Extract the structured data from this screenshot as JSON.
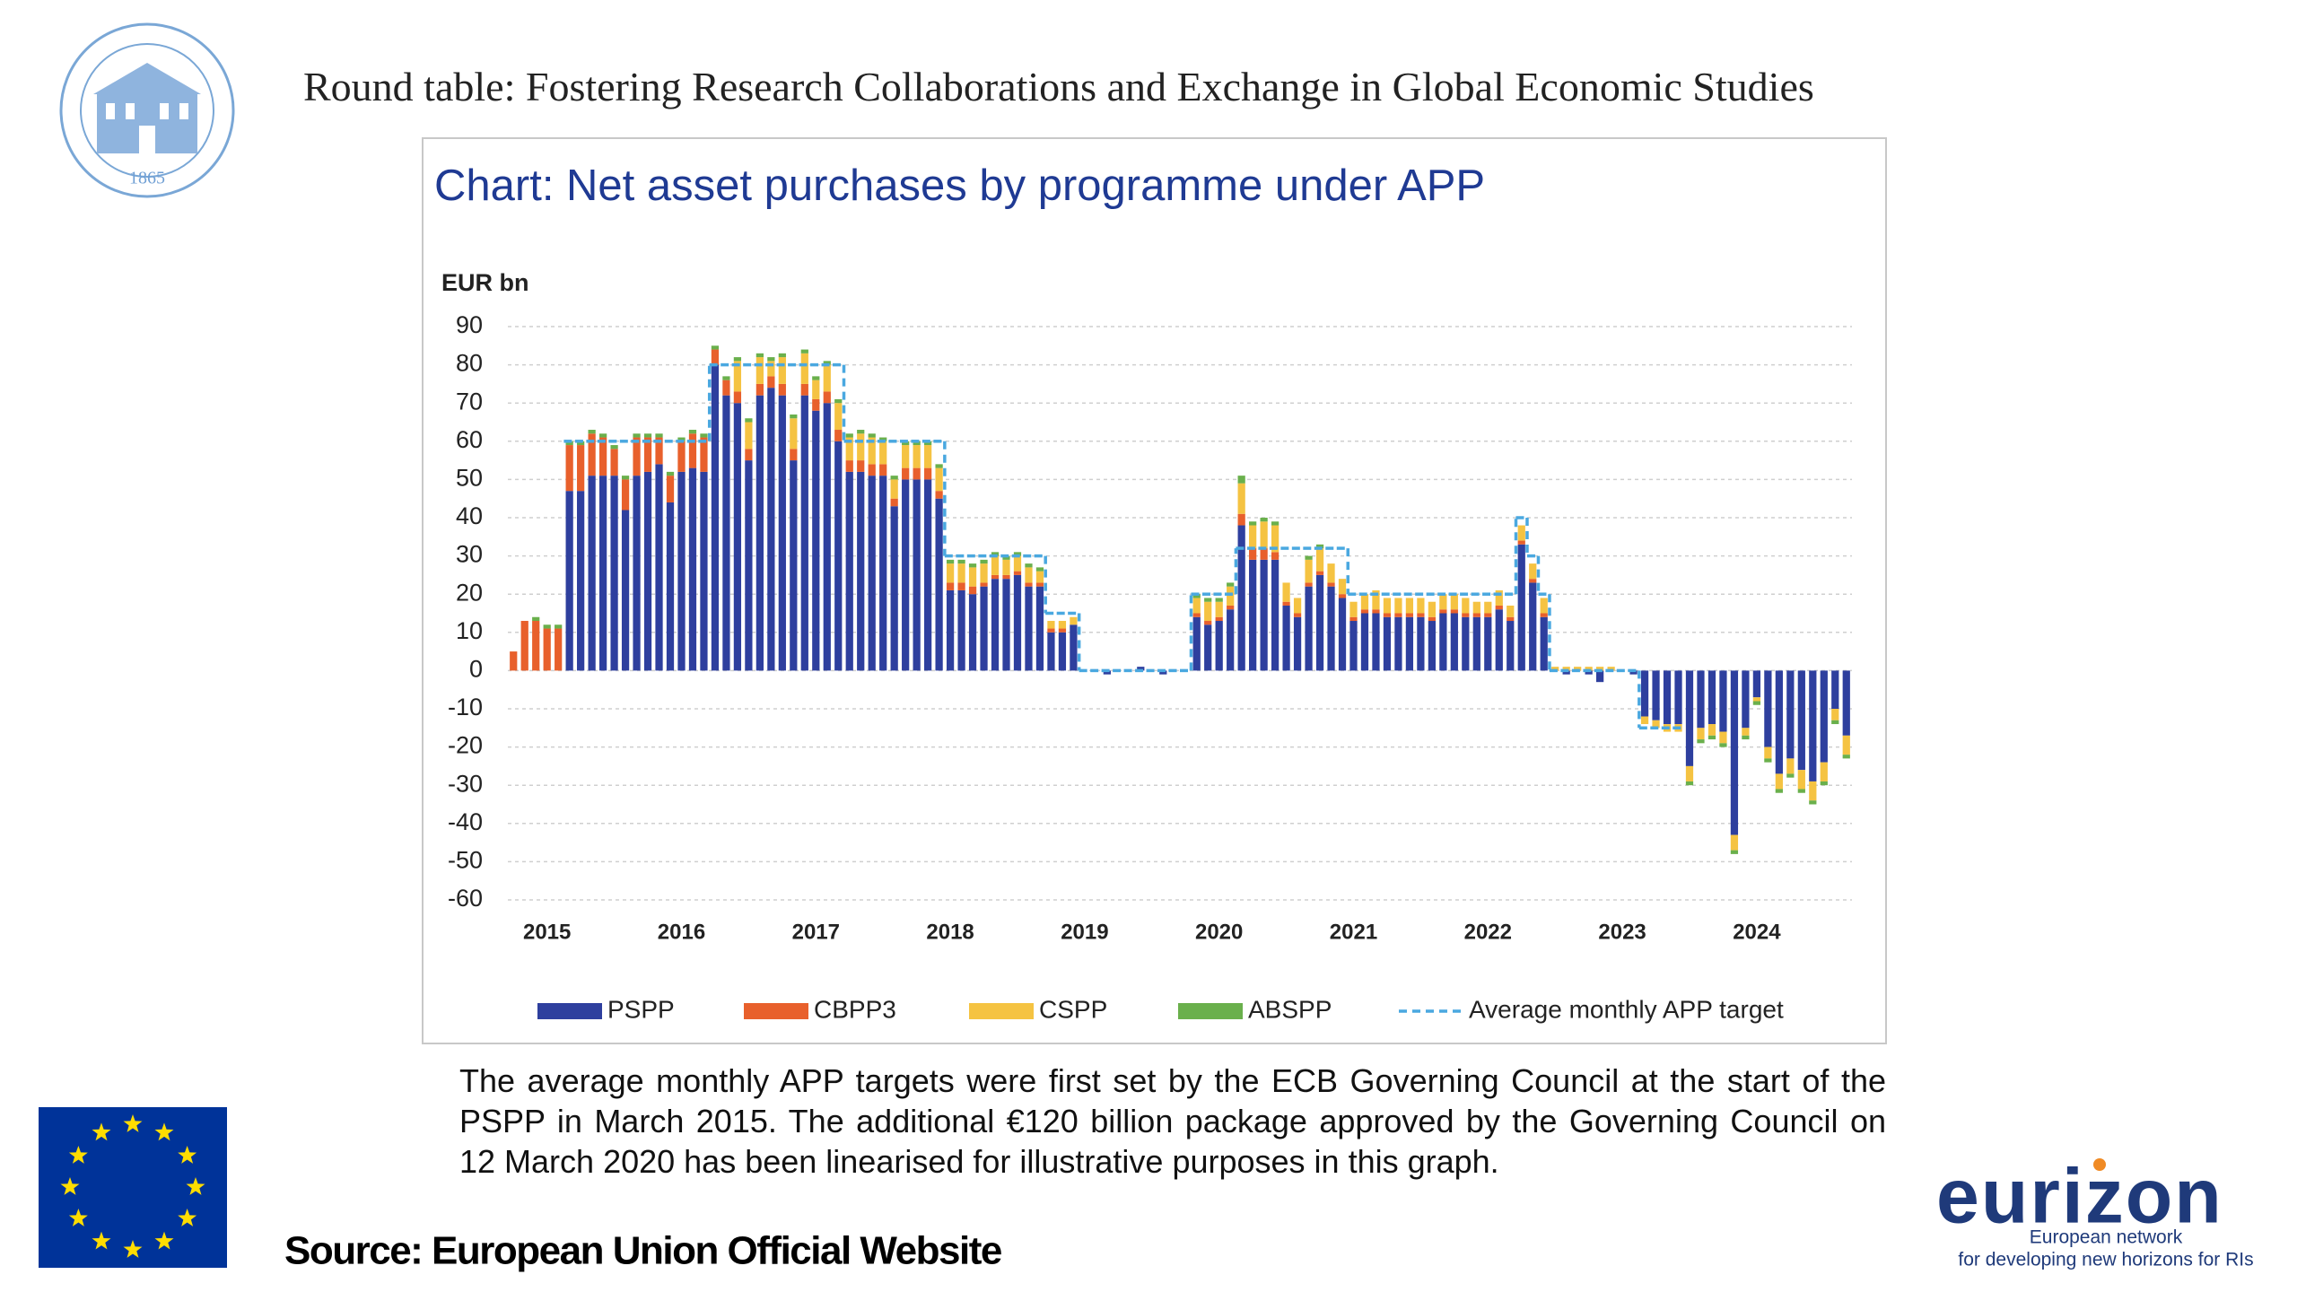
{
  "header": {
    "title": "Round table: Fostering Research Collaborations and Exchange in Global Economic Studies"
  },
  "logo": {
    "year": "1865"
  },
  "chart_data": {
    "type": "bar",
    "stacked": true,
    "title": "Chart: Net asset purchases by programme under APP",
    "y_label": "EUR bn",
    "categories": [
      null,
      null,
      null,
      "2015",
      null,
      null,
      null,
      null,
      null,
      null,
      null,
      null,
      null,
      null,
      null,
      "2016",
      null,
      null,
      null,
      null,
      null,
      null,
      null,
      null,
      null,
      null,
      null,
      "2017",
      null,
      null,
      null,
      null,
      null,
      null,
      null,
      null,
      null,
      null,
      null,
      "2018",
      null,
      null,
      null,
      null,
      null,
      null,
      null,
      null,
      null,
      null,
      null,
      "2019",
      null,
      null,
      null,
      null,
      null,
      null,
      null,
      null,
      null,
      null,
      null,
      "2020",
      null,
      null,
      null,
      null,
      null,
      null,
      null,
      null,
      null,
      null,
      null,
      "2021",
      null,
      null,
      null,
      null,
      null,
      null,
      null,
      null,
      null,
      null,
      null,
      "2022",
      null,
      null,
      null,
      null,
      null,
      null,
      null,
      null,
      null,
      null,
      null,
      "2023",
      null,
      null,
      null,
      null,
      null,
      null,
      null,
      null,
      null,
      null,
      null,
      "2024",
      null,
      null,
      null,
      null,
      null,
      null,
      null,
      null
    ],
    "series": [
      {
        "name": "PSPP",
        "color": "#2e3f9e",
        "values": [
          0,
          0,
          0,
          0,
          0,
          47,
          47,
          51,
          51,
          51,
          42,
          51,
          52,
          54,
          44,
          52,
          53,
          52,
          80,
          72,
          70,
          55,
          72,
          74,
          72,
          55,
          72,
          68,
          70,
          60,
          52,
          52,
          51,
          51,
          43,
          50,
          50,
          50,
          45,
          21,
          21,
          20,
          22,
          24,
          24,
          25,
          22,
          22,
          10,
          10,
          12,
          0,
          0,
          -1,
          0,
          0,
          1,
          0,
          -1,
          0,
          0,
          14,
          12,
          13,
          16,
          38,
          29,
          29,
          29,
          17,
          14,
          22,
          25,
          22,
          19,
          13,
          15,
          15,
          14,
          14,
          14,
          14,
          13,
          15,
          15,
          14,
          14,
          14,
          16,
          13,
          33,
          23,
          14,
          0,
          -1,
          0,
          -1,
          -3,
          0,
          0,
          -1,
          -12,
          -13,
          -14,
          -14,
          -25,
          -15,
          -14,
          -16,
          -43,
          -15,
          -7,
          -20,
          -27,
          -23,
          -26,
          -29,
          -24,
          -10,
          -17
        ]
      },
      {
        "name": "CBPP3",
        "color": "#e8602c",
        "values": [
          5,
          13,
          13,
          11,
          11,
          12,
          12,
          11,
          10,
          7,
          8,
          10,
          9,
          7,
          7,
          8,
          9,
          9,
          4,
          4,
          3,
          3,
          3,
          3,
          3,
          3,
          3,
          3,
          3,
          3,
          3,
          3,
          3,
          3,
          2,
          3,
          3,
          3,
          2,
          2,
          2,
          2,
          1,
          1,
          1,
          1,
          1,
          1,
          1,
          1,
          0,
          0,
          0,
          0,
          0,
          0,
          0,
          0,
          0,
          0,
          0,
          1,
          1,
          1,
          1,
          3,
          3,
          3,
          2,
          1,
          1,
          1,
          1,
          1,
          1,
          1,
          1,
          1,
          1,
          1,
          1,
          1,
          1,
          1,
          1,
          1,
          1,
          1,
          1,
          1,
          1,
          1,
          1,
          0,
          0,
          0,
          0,
          0,
          0,
          0,
          0,
          0,
          0,
          0,
          0,
          0,
          0,
          0,
          0,
          0,
          0,
          0,
          0,
          0,
          0,
          0,
          0,
          0,
          0,
          0
        ]
      },
      {
        "name": "CSPP",
        "color": "#f5c342",
        "values": [
          0,
          0,
          0,
          0,
          0,
          0,
          0,
          0,
          0,
          0,
          0,
          0,
          0,
          0,
          0,
          0,
          0,
          0,
          0,
          0,
          8,
          7,
          7,
          4,
          7,
          8,
          8,
          5,
          7,
          7,
          6,
          7,
          7,
          6,
          5,
          6,
          6,
          6,
          6,
          5,
          5,
          5,
          5,
          5,
          4,
          4,
          4,
          3,
          2,
          2,
          2,
          0,
          0,
          0,
          0,
          0,
          0,
          0,
          0,
          0,
          0,
          4,
          5,
          4,
          5,
          8,
          6,
          7,
          7,
          5,
          4,
          6,
          6,
          5,
          4,
          4,
          4,
          5,
          4,
          4,
          4,
          4,
          4,
          4,
          4,
          4,
          3,
          3,
          4,
          3,
          4,
          4,
          4,
          1,
          1,
          1,
          1,
          1,
          1,
          0,
          0,
          -2,
          -2,
          -2,
          -2,
          -4,
          -3,
          -3,
          -3,
          -4,
          -2,
          -1,
          -3,
          -4,
          -4,
          -5,
          -5,
          -5,
          -3,
          -5
        ]
      },
      {
        "name": "ABSPP",
        "color": "#6ab04c",
        "values": [
          0,
          0,
          1,
          1,
          1,
          1,
          1,
          1,
          1,
          1,
          1,
          1,
          1,
          1,
          1,
          1,
          1,
          1,
          1,
          1,
          1,
          1,
          1,
          1,
          1,
          1,
          1,
          1,
          1,
          1,
          1,
          1,
          1,
          1,
          1,
          1,
          1,
          1,
          1,
          1,
          1,
          1,
          1,
          1,
          1,
          1,
          1,
          1,
          0,
          0,
          0,
          0,
          0,
          0,
          0,
          0,
          0,
          0,
          0,
          0,
          0,
          1,
          1,
          1,
          1,
          2,
          1,
          1,
          1,
          0,
          0,
          1,
          1,
          0,
          0,
          0,
          0,
          0,
          0,
          0,
          0,
          0,
          0,
          0,
          0,
          0,
          0,
          0,
          0,
          0,
          0,
          0,
          0,
          0,
          0,
          0,
          0,
          0,
          0,
          0,
          0,
          0,
          0,
          0,
          0,
          -1,
          -1,
          -1,
          -1,
          -1,
          -1,
          -1,
          -1,
          -1,
          -1,
          -1,
          -1,
          -1,
          -1,
          -1
        ]
      },
      {
        "name": "Average monthly APP target",
        "type": "line",
        "dashed": true,
        "color": "#4aa8e0",
        "values": [
          null,
          null,
          null,
          null,
          null,
          60,
          60,
          60,
          60,
          60,
          60,
          60,
          60,
          60,
          60,
          60,
          60,
          60,
          80,
          80,
          80,
          80,
          80,
          80,
          80,
          80,
          80,
          80,
          80,
          80,
          60,
          60,
          60,
          60,
          60,
          60,
          60,
          60,
          60,
          30,
          30,
          30,
          30,
          30,
          30,
          30,
          30,
          30,
          15,
          15,
          15,
          0,
          0,
          0,
          0,
          0,
          0,
          0,
          0,
          0,
          0,
          20,
          20,
          20,
          20,
          32,
          32,
          32,
          32,
          32,
          32,
          32,
          32,
          32,
          32,
          20,
          20,
          20,
          20,
          20,
          20,
          20,
          20,
          20,
          20,
          20,
          20,
          20,
          20,
          20,
          40,
          30,
          20,
          0,
          0,
          0,
          0,
          0,
          0,
          0,
          0,
          -15,
          -15,
          -15,
          -15,
          null,
          null,
          null,
          null,
          null,
          null,
          null,
          null,
          null,
          null,
          null,
          null,
          null,
          null,
          null
        ]
      }
    ],
    "ylim": [
      -60,
      90
    ],
    "yticks": [
      -60,
      -50,
      -40,
      -30,
      -20,
      -10,
      0,
      10,
      20,
      30,
      40,
      50,
      60,
      70,
      80,
      90
    ],
    "grid": true,
    "legend": "bottom"
  },
  "note": "The average monthly APP targets were first set by the ECB Governing Council at the start of the PSPP in March 2015. The additional €120 billion package approved by the Governing Council on 12 March 2020 has been linearised for illustrative purposes in this graph.",
  "source": "Source: European Union Official Website",
  "eurizon": {
    "name": "eurizon",
    "line1": "European network",
    "line2": "for developing new horizons for RIs"
  }
}
